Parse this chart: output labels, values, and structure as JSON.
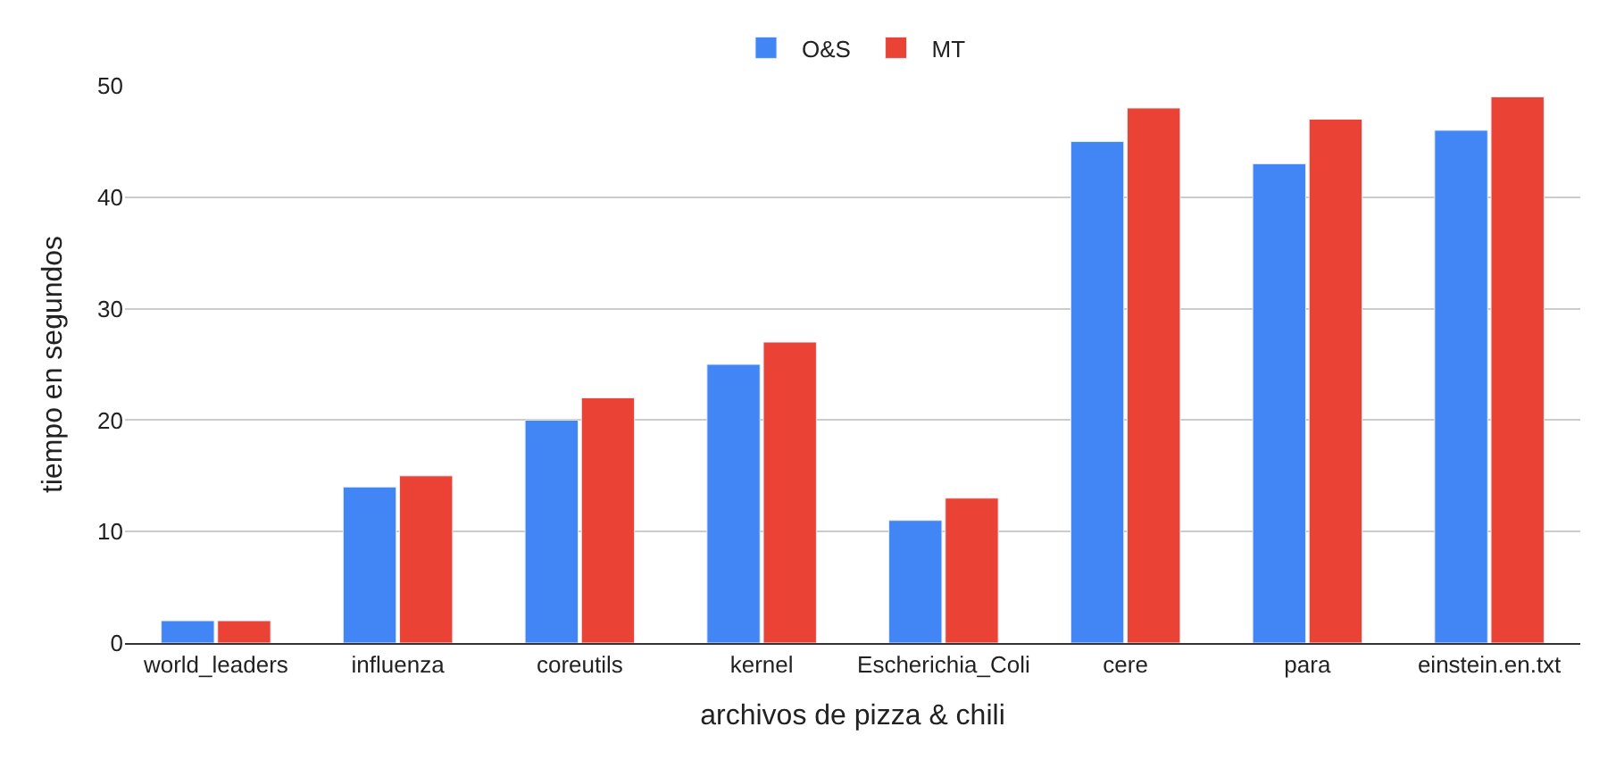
{
  "chart_data": {
    "type": "bar",
    "xlabel": "archivos de pizza & chili",
    "ylabel": "tiempo en segundos",
    "categories": [
      "world_leaders",
      "influenza",
      "coreutils",
      "kernel",
      "Escherichia_Coli",
      "cere",
      "para",
      "einstein.en.txt"
    ],
    "series": [
      {
        "name": "O&S",
        "color": "#4285f4",
        "values": [
          2,
          14,
          20,
          25,
          11,
          45,
          43,
          46
        ]
      },
      {
        "name": "MT",
        "color": "#ea4335",
        "values": [
          2,
          15,
          22,
          27,
          13,
          48,
          47,
          49
        ]
      }
    ],
    "ylim": [
      0,
      50
    ],
    "yticks": [
      0,
      10,
      20,
      30,
      40,
      50
    ],
    "grid": "y",
    "legend": "top"
  }
}
